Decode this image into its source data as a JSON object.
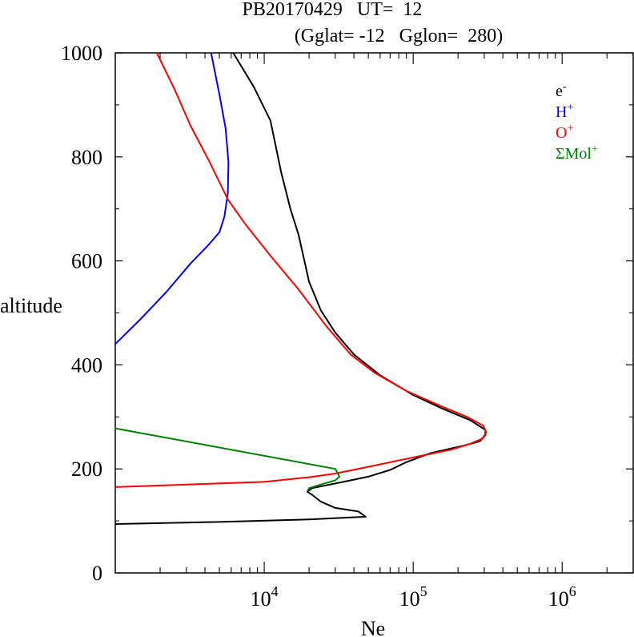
{
  "chart_data": {
    "type": "line",
    "title_line1": "PB20170429   UT=  12",
    "title_line2": "(Gglat= -12   Gglon=  280)",
    "xlabel": "Ne",
    "ylabel": "altitude",
    "x_scale": "log",
    "xlim": [
      1000,
      3000000
    ],
    "ylim": [
      0,
      1000
    ],
    "y_ticks": [
      0,
      200,
      400,
      600,
      800,
      1000
    ],
    "y_tick_labels": [
      "0",
      "200",
      "400",
      "600",
      "800",
      "1000"
    ],
    "x_ticks": [
      {
        "value": 10000,
        "base": "10",
        "exp": "4"
      },
      {
        "value": 100000,
        "base": "10",
        "exp": "5"
      },
      {
        "value": 1000000,
        "base": "10",
        "exp": "6"
      }
    ],
    "legend": [
      {
        "base": "e",
        "sup": "-",
        "color": "#000000"
      },
      {
        "base": "H",
        "sup": "+",
        "color": "#0000ff"
      },
      {
        "base": "O",
        "sup": "+",
        "color": "#ff0000"
      },
      {
        "base": "ΣMol",
        "sup": "+",
        "color": "#008000"
      }
    ],
    "series": [
      {
        "name": "e-",
        "color": "#000000",
        "points": [
          [
            1000,
            94
          ],
          [
            5000,
            98
          ],
          [
            20000,
            103
          ],
          [
            48000,
            108
          ],
          [
            43000,
            118
          ],
          [
            30000,
            125
          ],
          [
            24000,
            137
          ],
          [
            21000,
            150
          ],
          [
            19500,
            156
          ],
          [
            21000,
            163
          ],
          [
            34000,
            175
          ],
          [
            50000,
            185
          ],
          [
            70000,
            198
          ],
          [
            90000,
            213
          ],
          [
            130000,
            230
          ],
          [
            220000,
            245
          ],
          [
            280000,
            253
          ],
          [
            305000,
            265
          ],
          [
            305000,
            275
          ],
          [
            240000,
            294
          ],
          [
            160000,
            315
          ],
          [
            100000,
            342
          ],
          [
            60000,
            380
          ],
          [
            40000,
            420
          ],
          [
            30000,
            462
          ],
          [
            24000,
            505
          ],
          [
            20000,
            560
          ],
          [
            17000,
            650
          ],
          [
            15000,
            700
          ],
          [
            13000,
            770
          ],
          [
            11000,
            870
          ],
          [
            8500,
            935
          ],
          [
            6200,
            1000
          ]
        ]
      },
      {
        "name": "H+",
        "color": "#0000ff",
        "points": [
          [
            1000,
            440
          ],
          [
            1500,
            490
          ],
          [
            2200,
            540
          ],
          [
            3200,
            595
          ],
          [
            4200,
            630
          ],
          [
            5000,
            655
          ],
          [
            5400,
            685
          ],
          [
            5700,
            730
          ],
          [
            5750,
            790
          ],
          [
            5500,
            855
          ],
          [
            5000,
            920
          ],
          [
            4400,
            1000
          ]
        ]
      },
      {
        "name": "O+",
        "color": "#ff0000",
        "points": [
          [
            1000,
            165
          ],
          [
            10000,
            175
          ],
          [
            20000,
            184
          ],
          [
            30000,
            191
          ],
          [
            50000,
            204
          ],
          [
            100000,
            222
          ],
          [
            180000,
            237
          ],
          [
            240000,
            248
          ],
          [
            290000,
            258
          ],
          [
            310000,
            270
          ],
          [
            295000,
            283
          ],
          [
            230000,
            300
          ],
          [
            150000,
            322
          ],
          [
            90000,
            350
          ],
          [
            55000,
            385
          ],
          [
            38000,
            420
          ],
          [
            26000,
            475
          ],
          [
            17000,
            545
          ],
          [
            11000,
            610
          ],
          [
            7500,
            670
          ],
          [
            5700,
            718
          ],
          [
            4300,
            790
          ],
          [
            3200,
            860
          ],
          [
            2500,
            930
          ],
          [
            1900,
            1000
          ]
        ]
      },
      {
        "name": "ΣMol+",
        "color": "#008000",
        "points": [
          [
            1000,
            278
          ],
          [
            30000,
            200
          ],
          [
            32000,
            185
          ],
          [
            30000,
            178
          ],
          [
            24000,
            170
          ],
          [
            20000,
            163
          ],
          [
            19500,
            157
          ]
        ]
      }
    ]
  }
}
